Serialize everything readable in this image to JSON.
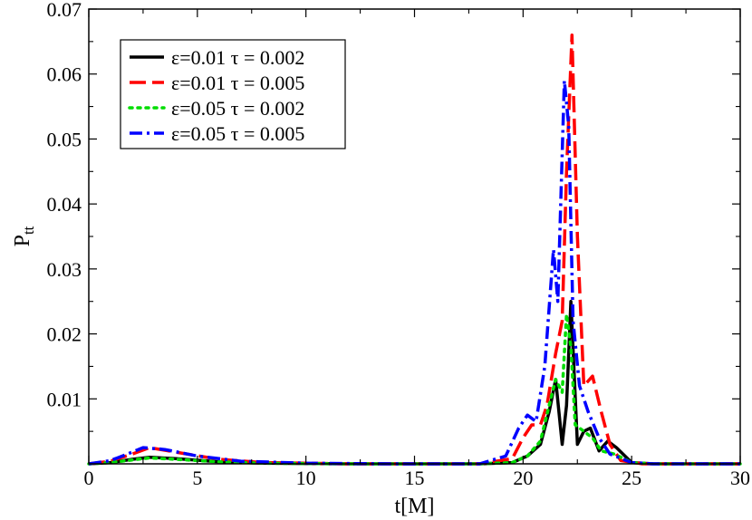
{
  "chart_data": {
    "type": "line",
    "title": "",
    "xlabel": "t[M]",
    "ylabel_main": "P",
    "ylabel_sub": "tt",
    "xlim": [
      0,
      30
    ],
    "ylim": [
      0,
      0.07
    ],
    "xticks": [
      0,
      5,
      10,
      15,
      20,
      25,
      30
    ],
    "xtick_labels": [
      "0",
      "5",
      "10",
      "15",
      "20",
      "25",
      "30"
    ],
    "yticks": [
      0.01,
      0.02,
      0.03,
      0.04,
      0.05,
      0.06,
      0.07
    ],
    "ytick_labels": [
      "0.01",
      "0.02",
      "0.03",
      "0.04",
      "0.05",
      "0.06",
      "0.07"
    ],
    "legend_position": "top-left",
    "series": [
      {
        "name": "ε=0.01 τ = 0.002",
        "color": "#000000",
        "dash": "solid",
        "points": [
          [
            0,
            0.0
          ],
          [
            1,
            0.0002
          ],
          [
            2,
            0.0007
          ],
          [
            2.8,
            0.001
          ],
          [
            4,
            0.0008
          ],
          [
            6,
            0.0003
          ],
          [
            8,
            0.0001
          ],
          [
            12,
            0.0
          ],
          [
            18,
            0.0
          ],
          [
            19.5,
            0.0002
          ],
          [
            20.2,
            0.0012
          ],
          [
            20.8,
            0.003
          ],
          [
            21.2,
            0.008
          ],
          [
            21.5,
            0.013
          ],
          [
            21.8,
            0.003
          ],
          [
            22.0,
            0.009
          ],
          [
            22.2,
            0.025
          ],
          [
            22.5,
            0.003
          ],
          [
            22.8,
            0.005
          ],
          [
            23.1,
            0.0055
          ],
          [
            23.5,
            0.002
          ],
          [
            23.9,
            0.0035
          ],
          [
            24.3,
            0.0025
          ],
          [
            25,
            0.0002
          ],
          [
            26,
            0.0
          ],
          [
            30,
            0.0
          ]
        ]
      },
      {
        "name": "ε=0.01 τ = 0.005",
        "color": "#ff0000",
        "dash": "long-dash",
        "points": [
          [
            0,
            0.0
          ],
          [
            1,
            0.0004
          ],
          [
            2,
            0.0015
          ],
          [
            2.8,
            0.0025
          ],
          [
            4,
            0.0018
          ],
          [
            6,
            0.0007
          ],
          [
            8,
            0.0002
          ],
          [
            12,
            0.0
          ],
          [
            18,
            0.0
          ],
          [
            19.5,
            0.0008
          ],
          [
            20.0,
            0.004
          ],
          [
            20.4,
            0.006
          ],
          [
            20.8,
            0.006
          ],
          [
            21.1,
            0.009
          ],
          [
            21.5,
            0.017
          ],
          [
            21.8,
            0.022
          ],
          [
            22.0,
            0.045
          ],
          [
            22.25,
            0.066
          ],
          [
            22.5,
            0.035
          ],
          [
            22.8,
            0.012
          ],
          [
            23.2,
            0.0135
          ],
          [
            23.6,
            0.008
          ],
          [
            24.0,
            0.003
          ],
          [
            24.5,
            0.0005
          ],
          [
            25.5,
            0.0
          ],
          [
            30,
            0.0
          ]
        ]
      },
      {
        "name": "ε=0.05 τ = 0.002",
        "color": "#00dd00",
        "dash": "dotted",
        "points": [
          [
            0,
            0.0
          ],
          [
            1,
            0.0002
          ],
          [
            2,
            0.0006
          ],
          [
            2.8,
            0.0009
          ],
          [
            4,
            0.0007
          ],
          [
            6,
            0.0003
          ],
          [
            8,
            0.0001
          ],
          [
            12,
            0.0
          ],
          [
            18,
            0.0
          ],
          [
            19.5,
            0.0002
          ],
          [
            20.2,
            0.0012
          ],
          [
            20.8,
            0.0035
          ],
          [
            21.2,
            0.009
          ],
          [
            21.5,
            0.013
          ],
          [
            21.8,
            0.011
          ],
          [
            22.0,
            0.023
          ],
          [
            22.2,
            0.018
          ],
          [
            22.4,
            0.006
          ],
          [
            22.8,
            0.005
          ],
          [
            23.2,
            0.004
          ],
          [
            23.6,
            0.002
          ],
          [
            24.2,
            0.0015
          ],
          [
            25,
            0.0002
          ],
          [
            26,
            0.0
          ],
          [
            30,
            0.0
          ]
        ]
      },
      {
        "name": "ε=0.05 τ = 0.005",
        "color": "#0000ff",
        "dash": "dash-dot",
        "points": [
          [
            0,
            0.0
          ],
          [
            1,
            0.0005
          ],
          [
            2,
            0.0018
          ],
          [
            2.5,
            0.0025
          ],
          [
            3.5,
            0.0022
          ],
          [
            5,
            0.0012
          ],
          [
            7,
            0.0004
          ],
          [
            10,
            0.0001
          ],
          [
            14,
            0.0
          ],
          [
            18,
            0.0
          ],
          [
            19.2,
            0.0012
          ],
          [
            19.8,
            0.0055
          ],
          [
            20.2,
            0.0075
          ],
          [
            20.6,
            0.0065
          ],
          [
            21.0,
            0.015
          ],
          [
            21.4,
            0.033
          ],
          [
            21.6,
            0.025
          ],
          [
            21.9,
            0.059
          ],
          [
            22.1,
            0.052
          ],
          [
            22.3,
            0.022
          ],
          [
            22.6,
            0.012
          ],
          [
            23.0,
            0.008
          ],
          [
            23.5,
            0.004
          ],
          [
            24.0,
            0.0015
          ],
          [
            25,
            0.0002
          ],
          [
            26,
            0.0
          ],
          [
            30,
            0.0
          ]
        ]
      }
    ]
  }
}
